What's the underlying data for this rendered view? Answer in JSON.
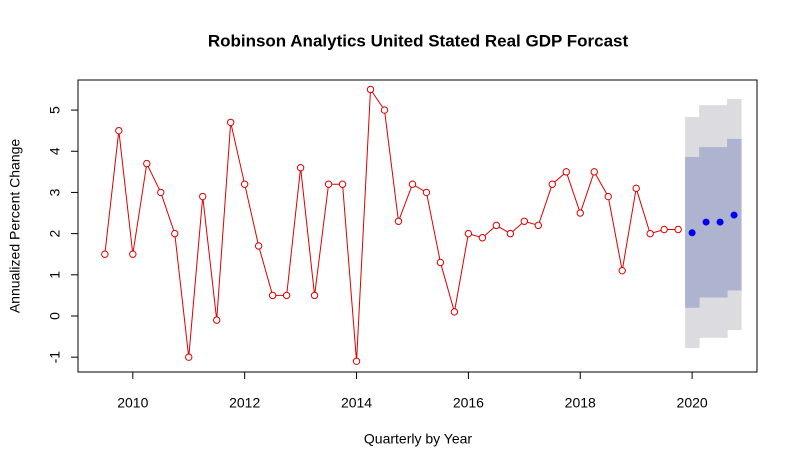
{
  "chart_data": {
    "type": "forecast",
    "title": "Robinson Analytics United Stated Real GDP Forcast",
    "x_label": "Quarterly by Year",
    "y_label": "Annualized Percent Change",
    "x": [
      2009.5,
      2009.75,
      2010,
      2010.25,
      2010.5,
      2010.75,
      2011,
      2011.25,
      2011.5,
      2011.75,
      2012,
      2012.25,
      2012.5,
      2012.75,
      2013,
      2013.25,
      2013.5,
      2013.75,
      2014,
      2014.25,
      2014.5,
      2014.75,
      2015,
      2015.25,
      2015.5,
      2015.75,
      2016,
      2016.25,
      2016.5,
      2016.75,
      2017,
      2017.25,
      2017.5,
      2017.75,
      2018,
      2018.25,
      2018.5,
      2018.75,
      2019,
      2019.25,
      2019.5,
      2019.75
    ],
    "values": [
      1.5,
      4.5,
      1.5,
      3.7,
      3.0,
      2.0,
      -1.0,
      2.9,
      -0.1,
      4.7,
      3.2,
      1.7,
      0.5,
      0.5,
      3.6,
      0.5,
      3.2,
      3.2,
      -1.1,
      5.5,
      5.0,
      2.3,
      3.2,
      3.0,
      1.3,
      0.1,
      2.0,
      1.9,
      2.2,
      2.0,
      2.3,
      2.2,
      3.2,
      3.5,
      2.5,
      3.5,
      2.9,
      1.1,
      3.1,
      2.0,
      2.1,
      2.1
    ],
    "color": "#dd0000",
    "forecast": {
      "x": [
        2020,
        2020.25,
        2020.5,
        2020.75
      ],
      "values": [
        2.02,
        2.28,
        2.28,
        2.45
      ],
      "lower80": [
        0.2,
        0.45,
        0.45,
        0.62
      ],
      "upper80": [
        3.86,
        4.1,
        4.1,
        4.3
      ],
      "lower95": [
        -0.78,
        -0.53,
        -0.53,
        -0.34
      ],
      "upper95": [
        4.83,
        5.12,
        5.12,
        5.27
      ],
      "color": "#0000ee",
      "color80": "#aeb3d0",
      "color95": "#dbdbe0"
    },
    "xlim": [
      2009.02,
      2021.16
    ],
    "ylim": [
      -1.36,
      5.73
    ],
    "xticks": [
      2010,
      2012,
      2014,
      2016,
      2018,
      2020
    ],
    "yticks": [
      -1,
      0,
      1,
      2,
      3,
      4,
      5
    ]
  }
}
